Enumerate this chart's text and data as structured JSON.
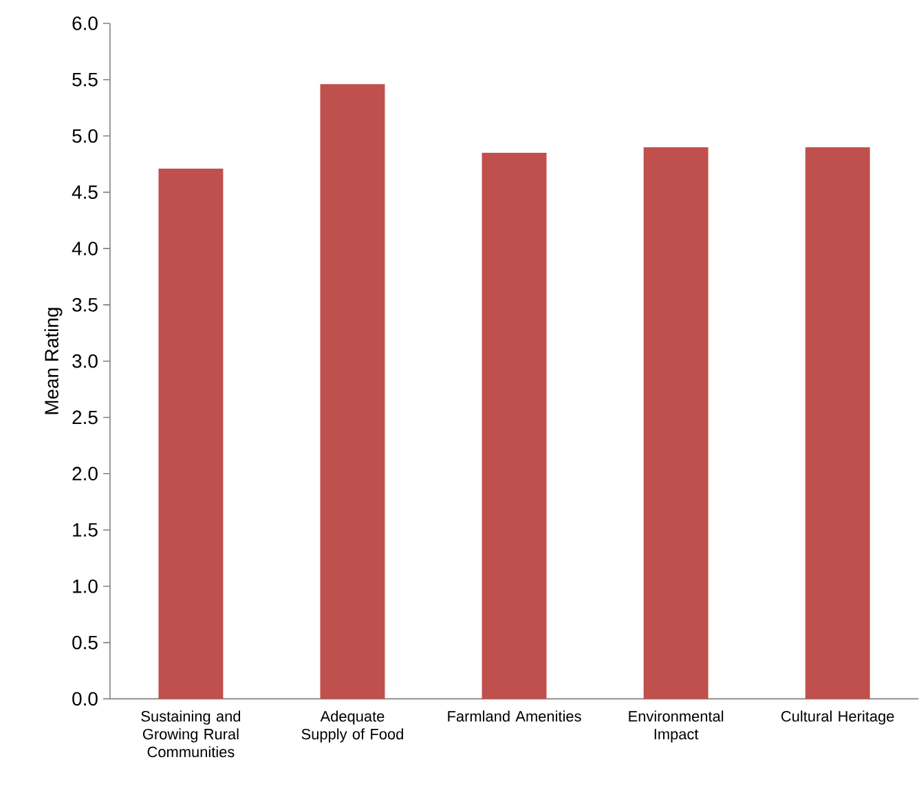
{
  "chart_data": {
    "type": "bar",
    "ylabel": "Mean Rating",
    "categories": [
      "Sustaining and Growing Rural Communities",
      "Adequate Supply of Food",
      "Farmland Amenities",
      "Environmental Impact",
      "Cultural Heritage"
    ],
    "values": [
      4.71,
      5.46,
      4.85,
      4.9,
      4.9
    ],
    "color": "#c0504d",
    "ylim": [
      0,
      6
    ],
    "yticks": [
      {
        "value": 0,
        "label": "0.0"
      },
      {
        "value": 0.5,
        "label": "0.5"
      },
      {
        "value": 1,
        "label": "1.0"
      },
      {
        "value": 1.5,
        "label": "1.5"
      },
      {
        "value": 2,
        "label": "2.0"
      },
      {
        "value": 2.5,
        "label": "2.5"
      },
      {
        "value": 3,
        "label": "3.0"
      },
      {
        "value": 3.5,
        "label": "3.5"
      },
      {
        "value": 4,
        "label": "4.0"
      },
      {
        "value": 4.5,
        "label": "4.5"
      },
      {
        "value": 5,
        "label": "5.0"
      },
      {
        "value": 5.5,
        "label": "5.5"
      },
      {
        "value": 6,
        "label": "6.0"
      }
    ],
    "grid": false
  }
}
